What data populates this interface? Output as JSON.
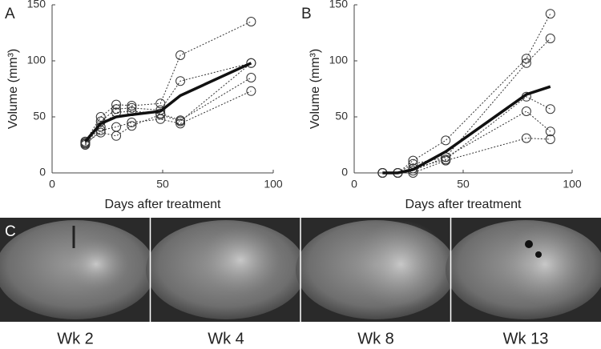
{
  "chart_data": [
    {
      "type": "line",
      "panel": "A",
      "xlabel": "Days after treatment",
      "ylabel": "Volume (mm³)",
      "xlim": [
        0,
        100
      ],
      "ylim": [
        0,
        150
      ],
      "xticks": [
        0,
        50,
        100
      ],
      "yticks": [
        0,
        50,
        100,
        150
      ],
      "x": [
        15,
        22,
        29,
        36,
        49,
        58,
        90
      ],
      "series": [
        {
          "color": "#333333",
          "style": "dotted",
          "values": [
            28,
            50,
            61,
            60,
            62,
            105,
            135
          ]
        },
        {
          "color": "#333333",
          "style": "dotted",
          "values": [
            27,
            46,
            57,
            58,
            56,
            82,
            98
          ]
        },
        {
          "color": "#333333",
          "style": "dotted",
          "values": [
            26,
            41,
            54,
            55,
            53,
            47,
            85
          ]
        },
        {
          "color": "#333333",
          "style": "dotted",
          "values": [
            25,
            38,
            41,
            45,
            48,
            44,
            73
          ]
        },
        {
          "color": "#333333",
          "style": "dotted",
          "values": [
            27,
            36,
            33,
            42,
            52,
            46,
            98
          ]
        },
        {
          "color": "#111111",
          "style": "solid",
          "values": [
            28,
            44,
            50,
            52,
            55,
            69,
            98
          ]
        }
      ]
    },
    {
      "type": "line",
      "panel": "B",
      "xlabel": "Days after treatment",
      "ylabel": "Volume (mm³)",
      "xlim": [
        0,
        100
      ],
      "ylim": [
        0,
        150
      ],
      "xticks": [
        0,
        50,
        100
      ],
      "yticks": [
        0,
        50,
        100,
        150
      ],
      "x": [
        13,
        20,
        27,
        42,
        79,
        90
      ],
      "series": [
        {
          "color": "#333333",
          "style": "dotted",
          "values": [
            0,
            0,
            11,
            29,
            102,
            142
          ]
        },
        {
          "color": "#333333",
          "style": "dotted",
          "values": [
            0,
            0,
            8,
            14,
            98,
            120
          ]
        },
        {
          "color": "#333333",
          "style": "dotted",
          "values": [
            0,
            0,
            4,
            12,
            68,
            57
          ]
        },
        {
          "color": "#333333",
          "style": "dotted",
          "values": [
            0,
            0,
            2,
            14,
            55,
            37
          ]
        },
        {
          "color": "#333333",
          "style": "dotted",
          "values": [
            0,
            0,
            0,
            11,
            31,
            30
          ]
        },
        {
          "color": "#111111",
          "style": "solid",
          "values": [
            0,
            0,
            3,
            19,
            70,
            77
          ]
        }
      ]
    }
  ],
  "images": {
    "panel": "C",
    "captions": [
      "Wk 2",
      "Wk 4",
      "Wk 8",
      "Wk 13"
    ]
  }
}
